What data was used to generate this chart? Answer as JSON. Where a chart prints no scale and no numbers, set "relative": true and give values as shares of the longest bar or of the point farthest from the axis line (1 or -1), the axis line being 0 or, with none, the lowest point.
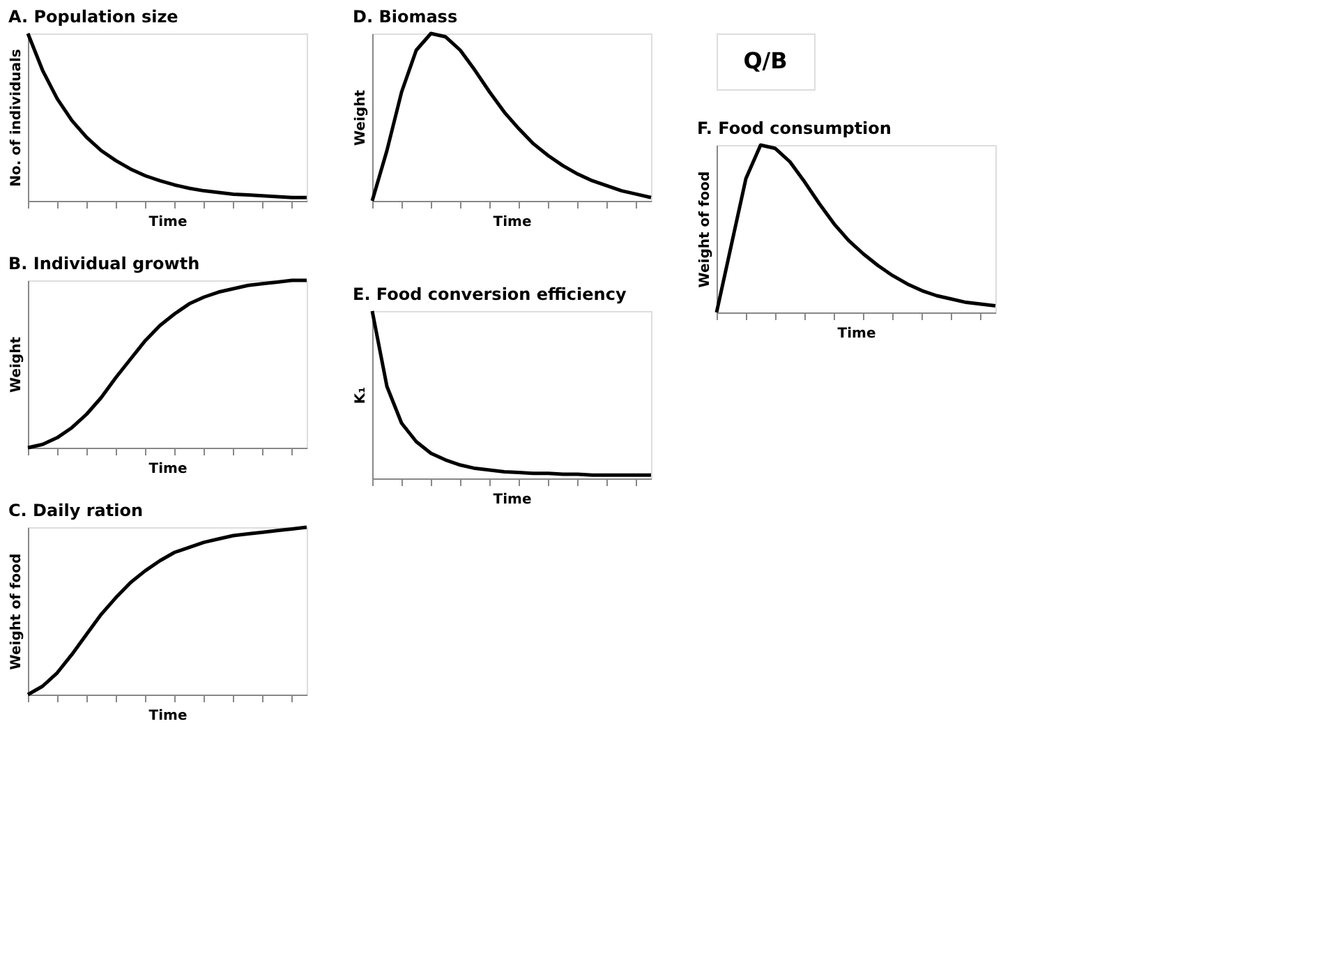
{
  "chart_data": [
    {
      "type": "line",
      "title": "A. Population size",
      "xlabel": "Time",
      "ylabel": "No. of individuals",
      "relative": true,
      "categories": [
        null,
        null,
        null,
        null,
        null,
        null,
        null,
        null,
        null,
        null,
        null,
        null,
        null,
        null,
        null,
        null,
        null,
        null,
        null,
        null
      ],
      "series": [
        {
          "color": "#000000",
          "values": [
            1,
            0.78,
            0.61,
            0.48,
            0.38,
            0.3,
            0.24,
            0.19,
            0.15,
            0.12,
            0.095,
            0.075,
            0.06,
            0.05,
            0.04,
            0.035,
            0.03,
            0.025,
            0.02,
            0.02
          ]
        }
      ]
    },
    {
      "type": "line",
      "title": "B. Individual growth",
      "xlabel": "Time",
      "ylabel": "Weight",
      "relative": true,
      "categories": [
        null,
        null,
        null,
        null,
        null,
        null,
        null,
        null,
        null,
        null,
        null,
        null,
        null,
        null,
        null,
        null,
        null,
        null,
        null,
        null
      ],
      "series": [
        {
          "color": "#000000",
          "values": [
            0,
            0.02,
            0.06,
            0.12,
            0.2,
            0.3,
            0.42,
            0.53,
            0.64,
            0.73,
            0.8,
            0.86,
            0.9,
            0.93,
            0.95,
            0.97,
            0.98,
            0.99,
            1,
            1
          ]
        }
      ]
    },
    {
      "type": "line",
      "title": "C. Daily ration",
      "xlabel": "Time",
      "ylabel": "Weight of food",
      "relative": true,
      "categories": [
        null,
        null,
        null,
        null,
        null,
        null,
        null,
        null,
        null,
        null,
        null,
        null,
        null,
        null,
        null,
        null,
        null,
        null,
        null,
        null
      ],
      "series": [
        {
          "color": "#000000",
          "values": [
            0,
            0.05,
            0.13,
            0.24,
            0.36,
            0.48,
            0.58,
            0.67,
            0.74,
            0.8,
            0.85,
            0.88,
            0.91,
            0.93,
            0.95,
            0.96,
            0.97,
            0.98,
            0.99,
            1
          ]
        }
      ]
    },
    {
      "type": "line",
      "title": "D. Biomass",
      "xlabel": "Time",
      "ylabel": "Weight",
      "relative": true,
      "categories": [
        null,
        null,
        null,
        null,
        null,
        null,
        null,
        null,
        null,
        null,
        null,
        null,
        null,
        null,
        null,
        null,
        null,
        null,
        null,
        null
      ],
      "series": [
        {
          "color": "#000000",
          "values": [
            0,
            0.3,
            0.65,
            0.9,
            1,
            0.98,
            0.9,
            0.78,
            0.65,
            0.53,
            0.43,
            0.34,
            0.27,
            0.21,
            0.16,
            0.12,
            0.09,
            0.06,
            0.04,
            0.02
          ]
        }
      ]
    },
    {
      "type": "line",
      "title": "E. Food conversion efficiency",
      "xlabel": "Time",
      "ylabel": "K₁",
      "relative": true,
      "categories": [
        null,
        null,
        null,
        null,
        null,
        null,
        null,
        null,
        null,
        null,
        null,
        null,
        null,
        null,
        null,
        null,
        null,
        null,
        null,
        null
      ],
      "series": [
        {
          "color": "#000000",
          "values": [
            1,
            0.55,
            0.33,
            0.22,
            0.15,
            0.11,
            0.08,
            0.06,
            0.05,
            0.04,
            0.035,
            0.03,
            0.03,
            0.025,
            0.025,
            0.02,
            0.02,
            0.02,
            0.02,
            0.02
          ]
        }
      ]
    },
    {
      "type": "other",
      "title": "Q/B"
    },
    {
      "type": "line",
      "title": "F. Food consumption",
      "xlabel": "Time",
      "ylabel": "Weight of food",
      "relative": true,
      "categories": [
        null,
        null,
        null,
        null,
        null,
        null,
        null,
        null,
        null,
        null,
        null,
        null,
        null,
        null,
        null,
        null,
        null,
        null,
        null,
        null
      ],
      "series": [
        {
          "color": "#000000",
          "values": [
            0,
            0.4,
            0.8,
            1,
            0.98,
            0.9,
            0.78,
            0.65,
            0.53,
            0.43,
            0.35,
            0.28,
            0.22,
            0.17,
            0.13,
            0.1,
            0.08,
            0.06,
            0.05,
            0.04
          ]
        }
      ]
    }
  ]
}
